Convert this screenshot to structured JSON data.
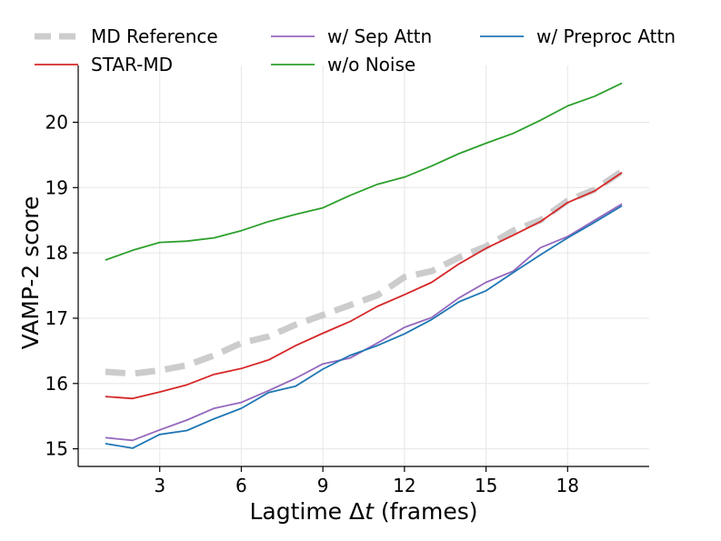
{
  "chart_data": {
    "type": "line",
    "title": "",
    "xlabel": "Lagtime Δ",
    "xlabel_var": "t",
    "xlabel_suffix": " (frames)",
    "ylabel": "VAMP-2 score",
    "xlim": [
      0.0,
      21.0
    ],
    "ylim": [
      14.73,
      20.87
    ],
    "xticks": [
      3,
      6,
      9,
      12,
      15,
      18
    ],
    "yticks": [
      15,
      16,
      17,
      18,
      19,
      20
    ],
    "grid": true,
    "legend_position": "top",
    "x": [
      1,
      2,
      3,
      4,
      5,
      6,
      7,
      8,
      9,
      10,
      11,
      12,
      13,
      14,
      15,
      16,
      17,
      18,
      19,
      20
    ],
    "series": [
      {
        "name": "MD Reference",
        "color": "#cccccc",
        "dashed": true,
        "values": [
          16.18,
          16.15,
          16.2,
          16.28,
          16.43,
          16.62,
          16.72,
          16.9,
          17.05,
          17.2,
          17.35,
          17.63,
          17.72,
          17.93,
          18.1,
          18.34,
          18.5,
          18.8,
          18.97,
          19.25
        ]
      },
      {
        "name": "STAR-MD",
        "color": "#d62728",
        "dashed": false,
        "values": [
          15.8,
          15.77,
          15.87,
          15.98,
          16.14,
          16.23,
          16.36,
          16.58,
          16.77,
          16.95,
          17.18,
          17.36,
          17.55,
          17.83,
          18.07,
          18.27,
          18.48,
          18.77,
          18.95,
          19.23
        ]
      },
      {
        "name": "w/ Sep Attn",
        "color": "#9467bd",
        "dashed": false,
        "values": [
          15.17,
          15.13,
          15.29,
          15.44,
          15.62,
          15.71,
          15.89,
          16.08,
          16.3,
          16.39,
          16.62,
          16.86,
          17.01,
          17.31,
          17.55,
          17.72,
          18.08,
          18.25,
          18.5,
          18.75
        ]
      },
      {
        "name": "w/o Noise",
        "color": "#2ca02c",
        "dashed": false,
        "values": [
          17.89,
          18.04,
          18.16,
          18.18,
          18.23,
          18.34,
          18.48,
          18.59,
          18.69,
          18.88,
          19.05,
          19.16,
          19.33,
          19.52,
          19.68,
          19.83,
          20.03,
          20.25,
          20.4,
          20.6
        ]
      },
      {
        "name": "w/ Preproc Attn",
        "color": "#1f77b4",
        "dashed": false,
        "values": [
          15.08,
          15.01,
          15.22,
          15.28,
          15.46,
          15.62,
          15.86,
          15.96,
          16.22,
          16.43,
          16.58,
          16.76,
          16.98,
          17.25,
          17.42,
          17.7,
          17.97,
          18.23,
          18.47,
          18.72
        ]
      }
    ]
  }
}
